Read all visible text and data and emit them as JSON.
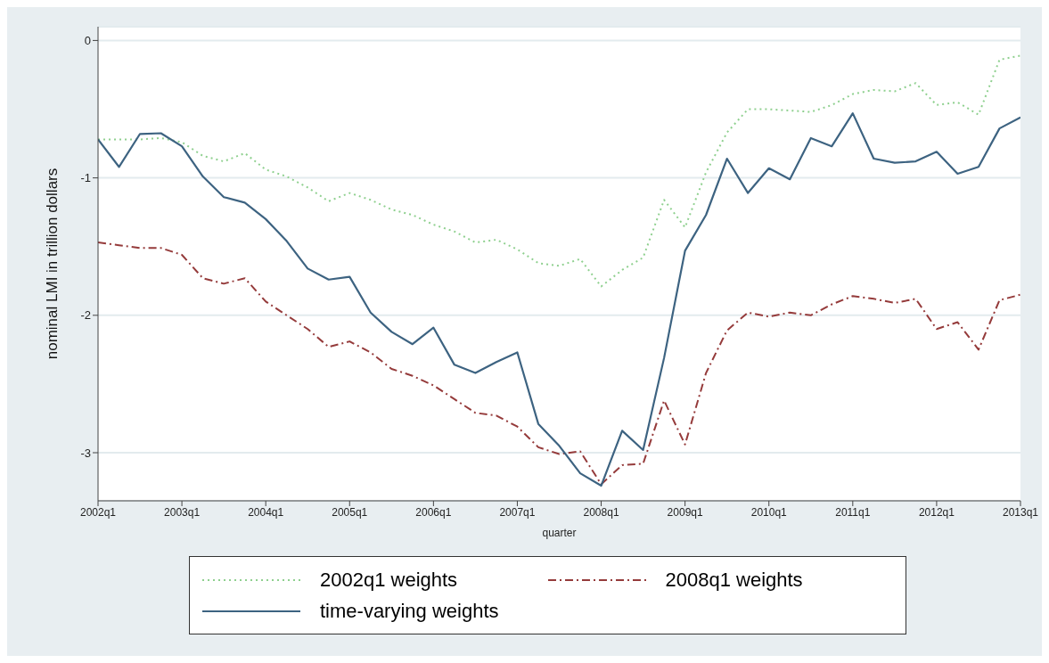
{
  "chart_data": {
    "type": "line",
    "xlabel": "quarter",
    "ylabel": "nominal LMI in trillion dollars",
    "categories": [
      "2002q1",
      null,
      null,
      null,
      "2003q1",
      null,
      null,
      null,
      "2004q1",
      null,
      null,
      null,
      "2005q1",
      null,
      null,
      null,
      "2006q1",
      null,
      null,
      null,
      "2007q1",
      null,
      null,
      null,
      "2008q1",
      null,
      null,
      null,
      "2009q1",
      null,
      null,
      null,
      "2010q1",
      null,
      null,
      null,
      "2011q1",
      null,
      null,
      null,
      "2012q1",
      null,
      null,
      null,
      "2013q1"
    ],
    "ylim": [
      -3.35,
      0.1
    ],
    "yticks": [
      -3,
      -2,
      -1,
      0
    ],
    "grid": "y",
    "legend": "bottom",
    "marker": "none",
    "series": [
      {
        "name": "2002q1 weights",
        "color": "#8fd08f",
        "line_style": "dotted",
        "values": [
          -0.72,
          -0.72,
          -0.72,
          -0.71,
          -0.74,
          -0.84,
          -0.88,
          -0.82,
          -0.94,
          -0.99,
          -1.07,
          -1.17,
          -1.11,
          -1.16,
          -1.23,
          -1.27,
          -1.34,
          -1.39,
          -1.47,
          -1.45,
          -1.52,
          -1.62,
          -1.64,
          -1.59,
          -1.79,
          -1.67,
          -1.58,
          -1.16,
          -1.36,
          -0.96,
          -0.67,
          -0.5,
          -0.5,
          -0.51,
          -0.52,
          -0.47,
          -0.39,
          -0.36,
          -0.37,
          -0.31,
          -0.47,
          -0.45,
          -0.54,
          -0.14,
          -0.11
        ]
      },
      {
        "name": "2008q1 weights",
        "color": "#953b3b",
        "line_style": "dashed",
        "values": [
          -1.47,
          -1.49,
          -1.51,
          -1.51,
          -1.56,
          -1.73,
          -1.77,
          -1.73,
          -1.9,
          -2.0,
          -2.1,
          -2.23,
          -2.19,
          -2.27,
          -2.39,
          -2.44,
          -2.51,
          -2.61,
          -2.71,
          -2.73,
          -2.81,
          -2.96,
          -3.01,
          -2.99,
          -3.23,
          -3.09,
          -3.08,
          -2.62,
          -2.94,
          -2.42,
          -2.11,
          -1.98,
          -2.01,
          -1.98,
          -2.0,
          -1.92,
          -1.86,
          -1.88,
          -1.91,
          -1.88,
          -2.1,
          -2.05,
          -2.25,
          -1.89,
          -1.85
        ]
      },
      {
        "name": "time-varying weights",
        "color": "#3d6381",
        "line_style": "solid",
        "values": [
          -0.72,
          -0.92,
          -0.68,
          -0.675,
          -0.77,
          -0.99,
          -1.14,
          -1.18,
          -1.3,
          -1.46,
          -1.66,
          -1.74,
          -1.72,
          -1.98,
          -2.12,
          -2.21,
          -2.09,
          -2.36,
          -2.42,
          -2.34,
          -2.27,
          -2.79,
          -2.95,
          -3.15,
          -3.24,
          -2.84,
          -2.98,
          -2.31,
          -1.53,
          -1.27,
          -0.86,
          -1.11,
          -0.93,
          -1.01,
          -0.71,
          -0.77,
          -0.53,
          -0.86,
          -0.89,
          -0.88,
          -0.81,
          -0.97,
          -0.92,
          -0.64,
          -0.56
        ]
      }
    ]
  }
}
